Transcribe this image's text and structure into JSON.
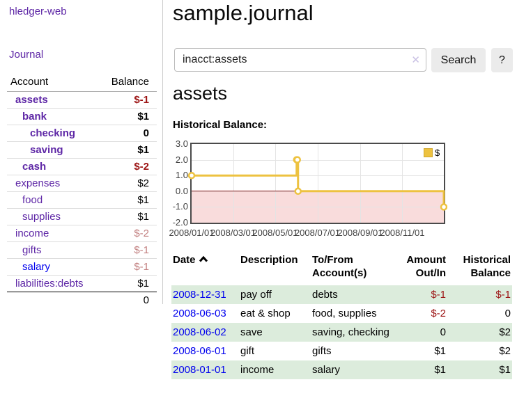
{
  "app": {
    "brand": "hledger-web"
  },
  "nav": {
    "journal": "Journal"
  },
  "sidebar": {
    "headers": {
      "account": "Account",
      "balance": "Balance"
    },
    "accounts": [
      {
        "name": "assets",
        "balance": "$-1",
        "depth": 0,
        "bold": true,
        "balance_style": "negative-strong"
      },
      {
        "name": "bank",
        "balance": "$1",
        "depth": 1,
        "bold": true,
        "balance_style": "normal"
      },
      {
        "name": "checking",
        "balance": "0",
        "depth": 2,
        "bold": true,
        "balance_style": "normal"
      },
      {
        "name": "saving",
        "balance": "$1",
        "depth": 2,
        "bold": true,
        "balance_style": "normal"
      },
      {
        "name": "cash",
        "balance": "$-2",
        "depth": 1,
        "bold": true,
        "balance_style": "negative-strong"
      },
      {
        "name": "expenses",
        "balance": "$2",
        "depth": 0,
        "bold": false,
        "balance_style": "normal"
      },
      {
        "name": "food",
        "balance": "$1",
        "depth": 1,
        "bold": false,
        "balance_style": "normal"
      },
      {
        "name": "supplies",
        "balance": "$1",
        "depth": 1,
        "bold": false,
        "balance_style": "normal"
      },
      {
        "name": "income",
        "balance": "$-2",
        "depth": 0,
        "bold": false,
        "balance_style": "negative-soft"
      },
      {
        "name": "gifts",
        "balance": "$-1",
        "depth": 1,
        "bold": false,
        "balance_style": "negative-soft"
      },
      {
        "name": "salary",
        "balance": "$-1",
        "depth": 1,
        "bold": false,
        "balance_style": "negative-soft",
        "link_style": "blue"
      },
      {
        "name": "liabilities:debts",
        "balance": "$1",
        "depth": 0,
        "bold": false,
        "balance_style": "normal"
      }
    ],
    "total": "0"
  },
  "header": {
    "title": "sample.journal"
  },
  "search": {
    "value": "inacct:assets",
    "clear_icon": "✕",
    "button_label": "Search",
    "help_label": "?"
  },
  "account_view": {
    "heading": "assets",
    "section_title": "Historical Balance:"
  },
  "chart_data": {
    "type": "line",
    "title": "Historical Balance",
    "series": [
      {
        "name": "$",
        "color": "#EDC240",
        "steps": true,
        "points": [
          [
            "2008-01-01",
            1
          ],
          [
            "2008-06-01",
            2
          ],
          [
            "2008-06-02",
            2
          ],
          [
            "2008-06-03",
            0
          ],
          [
            "2008-12-31",
            -1
          ]
        ]
      }
    ],
    "xlim": [
      "2008-01-01",
      "2008-12-31"
    ],
    "ylim": [
      -2,
      3
    ],
    "x_ticks": [
      "2008/01/01",
      "2008/03/01",
      "2008/05/01",
      "2008/07/01",
      "2008/09/01",
      "2008/11/01"
    ],
    "y_ticks": [
      "3.0",
      "2.0",
      "1.0",
      "0.0",
      "-1.0",
      "-2.0"
    ],
    "legend": {
      "label": "$",
      "position": "top-right",
      "swatch_color": "#EDC240"
    },
    "grid": true,
    "negative_region_fill": "#f9dcdc",
    "zero_line_color": "#8b0000"
  },
  "register": {
    "headers": {
      "date": "Date",
      "description": "Description",
      "accounts": "To/From Account(s)",
      "amount": "Amount Out/In",
      "balance": "Historical Balance"
    },
    "rows": [
      {
        "date": "2008-12-31",
        "description": "pay off",
        "accounts": "debts",
        "amount": "$-1",
        "balance": "$-1",
        "amount_negative": true,
        "balance_negative": true,
        "shaded": true
      },
      {
        "date": "2008-06-03",
        "description": "eat & shop",
        "accounts": "food, supplies",
        "amount": "$-2",
        "balance": "0",
        "amount_negative": true,
        "balance_negative": false,
        "shaded": false
      },
      {
        "date": "2008-06-02",
        "description": "save",
        "accounts": "saving, checking",
        "amount": "0",
        "balance": "$2",
        "amount_negative": false,
        "balance_negative": false,
        "shaded": true
      },
      {
        "date": "2008-06-01",
        "description": "gift",
        "accounts": "gifts",
        "amount": "$1",
        "balance": "$2",
        "amount_negative": false,
        "balance_negative": false,
        "shaded": false
      },
      {
        "date": "2008-01-01",
        "description": "income",
        "accounts": "salary",
        "amount": "$1",
        "balance": "$1",
        "amount_negative": false,
        "balance_negative": false,
        "shaded": true
      }
    ]
  },
  "colors": {
    "link_purple": "#5e27a6",
    "link_blue": "#0000ee",
    "negative_strong": "#9c1414",
    "negative_soft": "#c28080",
    "row_shade_green": "#dcecdc",
    "chart_line": "#EDC240",
    "chart_negative_fill": "#f9dcdc",
    "chart_zero_line": "#8b0000"
  }
}
